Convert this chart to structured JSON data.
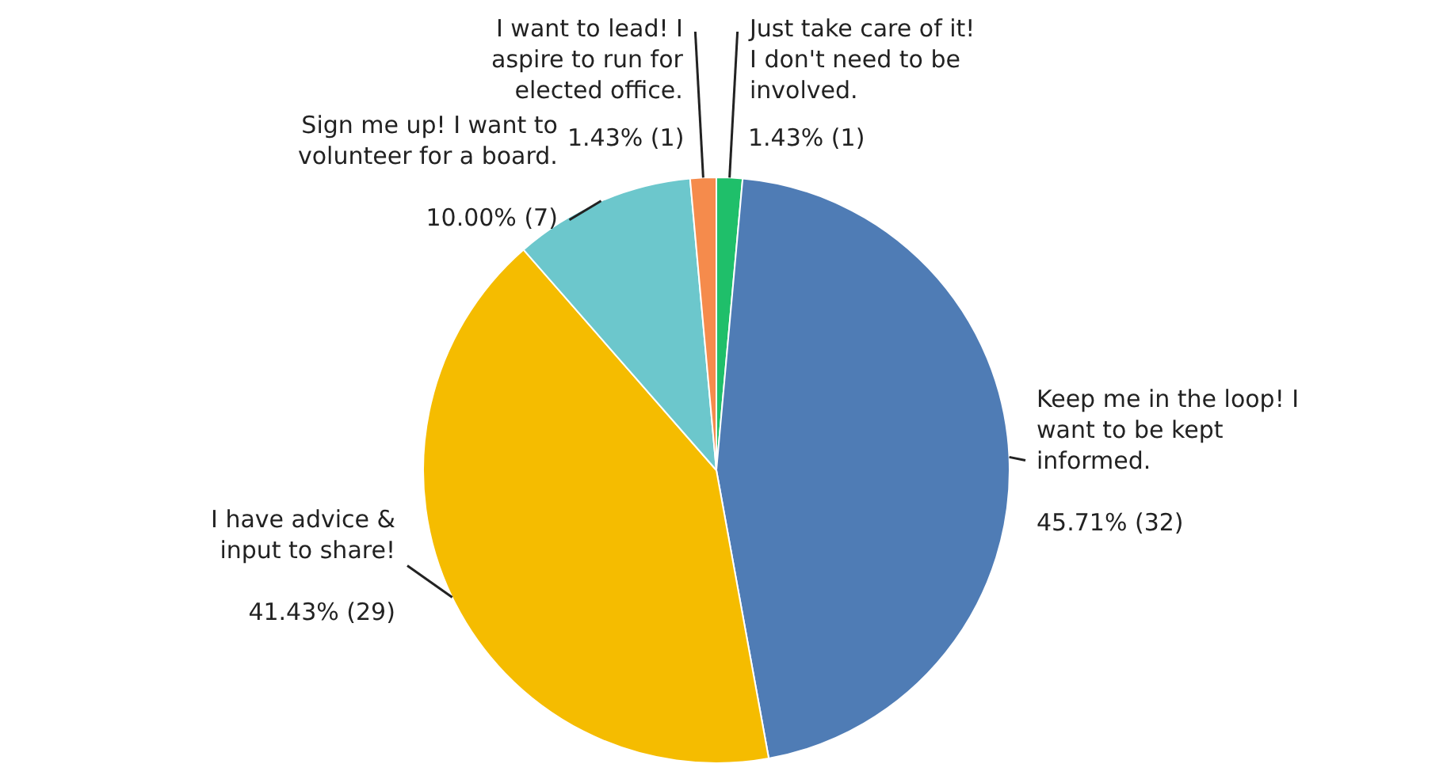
{
  "chart_data": {
    "type": "pie",
    "categories": [
      "Just take care of it! I don't need to be involved.",
      "Keep me in the loop! I want to be kept informed.",
      "I have advice & input to share!",
      "Sign me up! I want to volunteer for a board.",
      "I want to lead! I aspire to run for elected office."
    ],
    "values": [
      1.43,
      45.71,
      41.43,
      10.0,
      1.43
    ],
    "value_labels": [
      "1.43% (1)",
      "45.71% (32)",
      "41.43% (29)",
      "10.00% (7)",
      "1.43% (1)"
    ],
    "colors": [
      "#1fbf6a",
      "#4f7cb5",
      "#f5bc00",
      "#6cc7cc",
      "#f58b4c"
    ],
    "legend": false
  }
}
